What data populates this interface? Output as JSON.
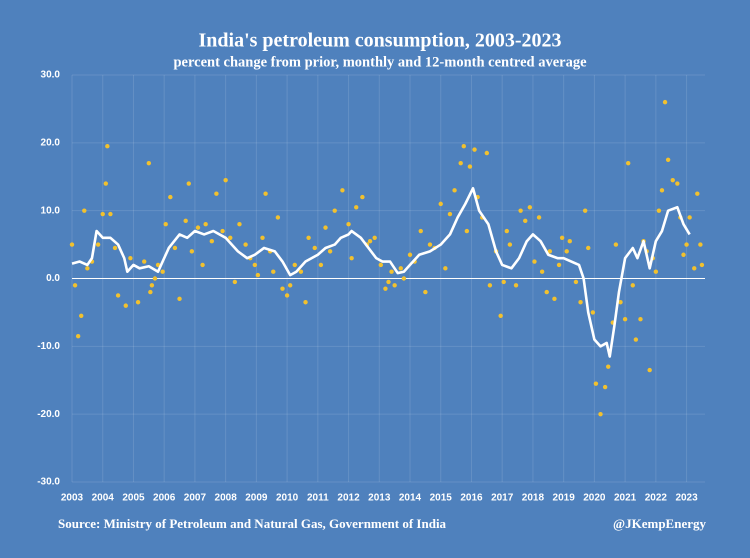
{
  "chart_data": {
    "type": "scatter",
    "title": "India's petroleum consumption, 2003-2023",
    "subtitle": "percent change from prior, monthly and 12-month centred average",
    "source": "Source: Ministry of Petroleum and Natural Gas, Government of India",
    "credit": "@JKempEnergy",
    "xlim": [
      2003,
      2023.6
    ],
    "xticks": [
      2003,
      2004,
      2005,
      2006,
      2007,
      2008,
      2009,
      2010,
      2011,
      2012,
      2013,
      2014,
      2015,
      2016,
      2017,
      2018,
      2019,
      2020,
      2021,
      2022,
      2023
    ],
    "ylim": [
      -30,
      30
    ],
    "yticks": [
      {
        "value": -30,
        "label": "-30.0"
      },
      {
        "value": -20,
        "label": "-20.0"
      },
      {
        "value": -10,
        "label": "-10.0"
      },
      {
        "value": 0,
        "label": "0.0"
      },
      {
        "value": 10,
        "label": "10.0"
      },
      {
        "value": 20,
        "label": "20.0"
      },
      {
        "value": 30,
        "label": "30.0"
      }
    ],
    "grid": true,
    "series": [
      {
        "type": "scatter",
        "color": "#f2c12e",
        "x": [
          2003.0,
          2003.1,
          2003.2,
          2003.3,
          2003.4,
          2003.5,
          2003.65,
          2003.85,
          2004.0,
          2004.1,
          2004.15,
          2004.25,
          2004.4,
          2004.5,
          2004.75,
          2004.9,
          2005.15,
          2005.35,
          2005.5,
          2005.55,
          2005.6,
          2005.7,
          2005.8,
          2005.95,
          2006.05,
          2006.2,
          2006.35,
          2006.5,
          2006.7,
          2006.8,
          2006.9,
          2007.1,
          2007.25,
          2007.35,
          2007.55,
          2007.7,
          2007.9,
          2008.0,
          2008.15,
          2008.3,
          2008.45,
          2008.65,
          2008.8,
          2008.95,
          2009.05,
          2009.2,
          2009.3,
          2009.45,
          2009.55,
          2009.7,
          2009.85,
          2010.0,
          2010.1,
          2010.25,
          2010.45,
          2010.6,
          2010.7,
          2010.9,
          2011.1,
          2011.25,
          2011.4,
          2011.55,
          2011.8,
          2012.0,
          2012.1,
          2012.25,
          2012.45,
          2012.6,
          2012.7,
          2012.85,
          2013.05,
          2013.2,
          2013.3,
          2013.4,
          2013.5,
          2013.7,
          2013.8,
          2014.0,
          2014.15,
          2014.35,
          2014.5,
          2014.65,
          2014.8,
          2015.0,
          2015.15,
          2015.3,
          2015.45,
          2015.65,
          2015.75,
          2015.85,
          2015.95,
          2016.1,
          2016.2,
          2016.35,
          2016.5,
          2016.6,
          2016.8,
          2016.95,
          2017.05,
          2017.15,
          2017.25,
          2017.45,
          2017.6,
          2017.75,
          2017.9,
          2018.05,
          2018.2,
          2018.3,
          2018.45,
          2018.55,
          2018.7,
          2018.85,
          2018.95,
          2019.1,
          2019.2,
          2019.4,
          2019.55,
          2019.7,
          2019.8,
          2019.95,
          2020.05,
          2020.2,
          2020.35,
          2020.45,
          2020.6,
          2020.7,
          2020.85,
          2021.0,
          2021.1,
          2021.25,
          2021.35,
          2021.5,
          2021.6,
          2021.7,
          2021.8,
          2021.9,
          2022.0,
          2022.1,
          2022.2,
          2022.3,
          2022.4,
          2022.55,
          2022.7,
          2022.8,
          2022.9,
          2023.0,
          2023.1,
          2023.25,
          2023.35,
          2023.45,
          2023.5
        ],
        "values": [
          5,
          -1,
          -8.5,
          -5.5,
          10,
          1.5,
          2.5,
          5,
          9.5,
          14,
          19.5,
          9.5,
          4.5,
          -2.5,
          -4,
          3,
          -3.5,
          2.5,
          17,
          -2,
          -1,
          0,
          2,
          1,
          8,
          12,
          4.5,
          -3,
          8.5,
          14,
          4,
          7.5,
          2,
          8,
          5.5,
          12.5,
          7,
          14.5,
          6,
          -0.5,
          8,
          5,
          3,
          2,
          0.5,
          6,
          12.5,
          4,
          1,
          9,
          -1.5,
          -2.5,
          -1,
          2,
          1,
          -3.5,
          6,
          4.5,
          2,
          7.5,
          4,
          10,
          13,
          8,
          3,
          10.5,
          12,
          5,
          5.5,
          6,
          2,
          -1.5,
          -0.5,
          1,
          -1,
          1.5,
          0,
          3.5,
          2.5,
          7,
          -2,
          5,
          4.5,
          11,
          1.5,
          9.5,
          13,
          17,
          19.5,
          7,
          16.5,
          19,
          12,
          9,
          18.5,
          -1,
          4,
          -5.5,
          -0.5,
          7,
          5,
          -1,
          10,
          8.5,
          10.5,
          2.5,
          9,
          1,
          -2,
          4,
          -3,
          2,
          6,
          4,
          5.5,
          -0.5,
          -3.5,
          10,
          4.5,
          -5,
          -15.5,
          -20,
          -16,
          -13,
          -6.5,
          5,
          -3.5,
          -6,
          17,
          -1,
          -9,
          -6,
          5.5,
          4,
          -13.5,
          3,
          1,
          10,
          13,
          26,
          17.5,
          14.5,
          14,
          9,
          3.5,
          5,
          9,
          1.5,
          12.5,
          5,
          2
        ]
      },
      {
        "type": "line",
        "color": "#ffffff",
        "x": [
          2003.0,
          2003.25,
          2003.5,
          2003.65,
          2003.8,
          2004.0,
          2004.25,
          2004.5,
          2004.7,
          2004.8,
          2005.0,
          2005.2,
          2005.5,
          2005.8,
          2006.0,
          2006.15,
          2006.5,
          2006.75,
          2007.0,
          2007.3,
          2007.6,
          2008.0,
          2008.2,
          2008.4,
          2008.7,
          2008.95,
          2009.25,
          2009.6,
          2009.85,
          2010.1,
          2010.3,
          2010.6,
          2011.0,
          2011.25,
          2011.55,
          2011.75,
          2012.0,
          2012.1,
          2012.4,
          2012.65,
          2012.9,
          2013.1,
          2013.35,
          2013.6,
          2013.8,
          2014.0,
          2014.3,
          2014.65,
          2015.0,
          2015.3,
          2015.55,
          2015.8,
          2016.05,
          2016.25,
          2016.55,
          2016.8,
          2017.0,
          2017.3,
          2017.55,
          2017.8,
          2018.0,
          2018.25,
          2018.5,
          2018.8,
          2019.0,
          2019.25,
          2019.5,
          2019.65,
          2019.8,
          2020.0,
          2020.2,
          2020.4,
          2020.5,
          2020.65,
          2020.8,
          2021.0,
          2021.25,
          2021.4,
          2021.6,
          2021.8,
          2022.0,
          2022.2,
          2022.4,
          2022.7,
          2022.9,
          2023.1
        ],
        "values": [
          2.2,
          2.5,
          2,
          3,
          7,
          6,
          6,
          5,
          3,
          1,
          2,
          1.5,
          1.8,
          1,
          3,
          4.5,
          6.5,
          6,
          7,
          6.5,
          7,
          6,
          5,
          4,
          3,
          3.5,
          4.5,
          4,
          2.5,
          0.5,
          1,
          2.5,
          3.5,
          4.5,
          5,
          6,
          6.5,
          7,
          6,
          4.5,
          3,
          2.5,
          2.5,
          0.8,
          1,
          2,
          3.5,
          4,
          5,
          6.5,
          9,
          11,
          13.3,
          10,
          8,
          4,
          2,
          1.5,
          3,
          5.5,
          6.5,
          5.5,
          3.5,
          3,
          3,
          2.5,
          2,
          0,
          -5,
          -9,
          -10,
          -9.5,
          -11.5,
          -7,
          -2,
          3,
          4.5,
          3,
          5.5,
          1.5,
          5.5,
          7,
          10,
          10.5,
          8,
          6.5
        ]
      }
    ]
  }
}
